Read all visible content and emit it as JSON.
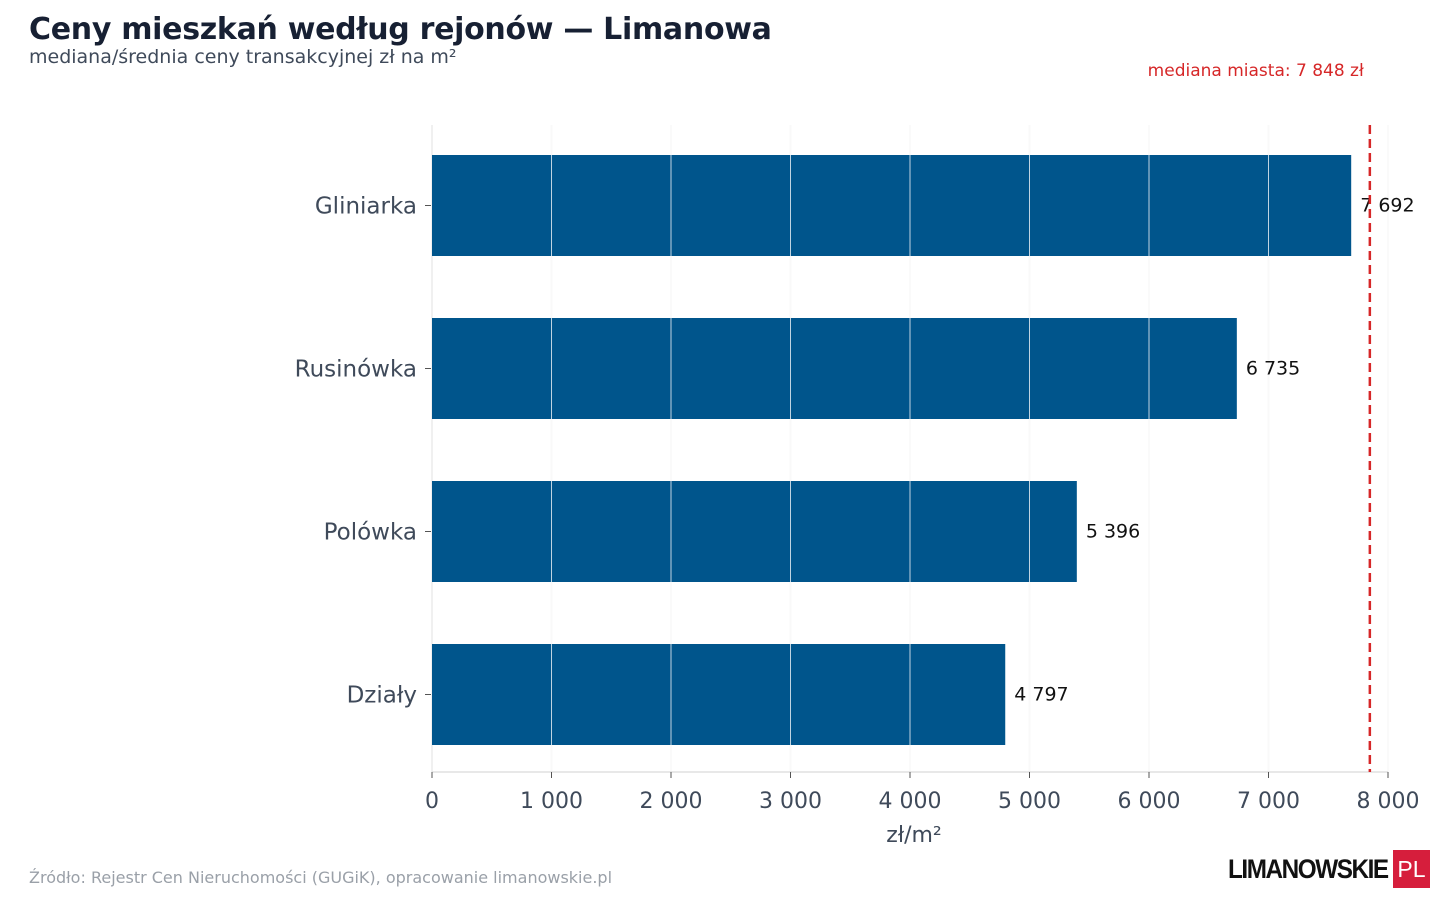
{
  "chart_data": {
    "type": "bar",
    "orientation": "horizontal",
    "title": "Ceny mieszkań według rejonów — Limanowa",
    "subtitle": "mediana/średnia ceny transakcyjnej zł na m²",
    "categories": [
      "Gliniarka",
      "Rusinówka",
      "Polówka",
      "Działy"
    ],
    "values": [
      7692,
      6735,
      5396,
      4797
    ],
    "value_labels": [
      "7 692",
      "6 735",
      "5 396",
      "4 797"
    ],
    "xlabel": "zł/m²",
    "xlim": [
      0,
      8000
    ],
    "x_ticks": [
      0,
      1000,
      2000,
      3000,
      4000,
      5000,
      6000,
      7000,
      8000
    ],
    "x_tick_labels": [
      "0",
      "1 000",
      "2 000",
      "3 000",
      "4 000",
      "5 000",
      "6 000",
      "7 000",
      "8 000"
    ],
    "grid": "vertical",
    "reference_line": {
      "value": 7848,
      "label": "mediana miasta: 7 848 zł",
      "color": "#d62728",
      "style": "dashed"
    },
    "bar_color": "#00558c"
  },
  "footer": {
    "source": "Źródło: Rejestr Cen Nieruchomości (GUGiK), opracowanie limanowskie.pl",
    "logo_text": "LIMANOWSKIE",
    "logo_badge": "PL",
    "logo_badge_color": "#d61e3c"
  }
}
